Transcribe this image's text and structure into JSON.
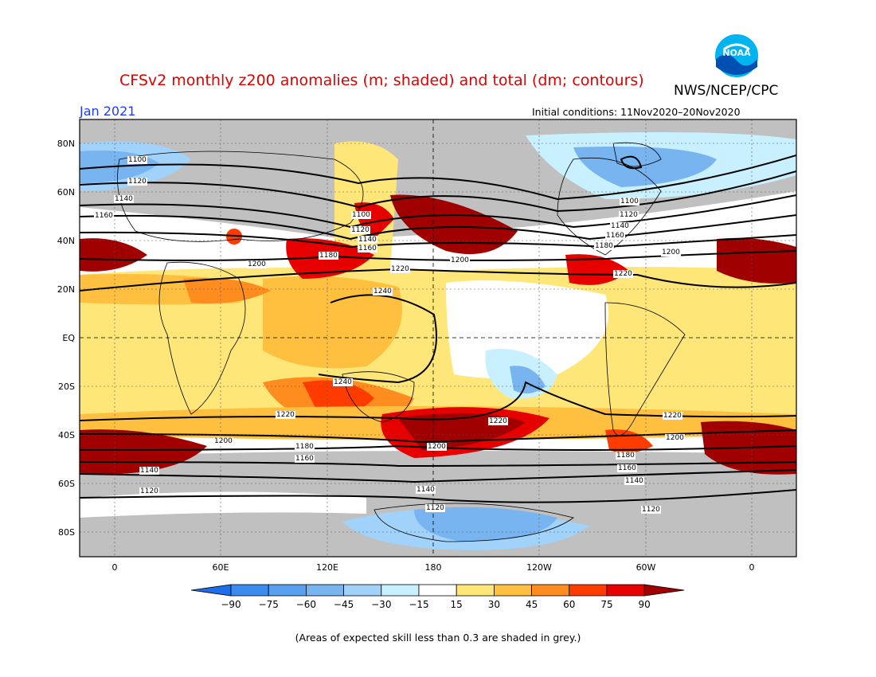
{
  "header": {
    "title": "CFSv2 monthly z200 anomalies (m; shaded) and total (dm; contours)",
    "agency": "NWS/NCEP/CPC",
    "month": "Jan 2021",
    "initial_conditions": "Initial conditions: 11Nov2020–20Nov2020",
    "logo_text": "NOAA"
  },
  "map": {
    "lat_ticks": [
      "80N",
      "60N",
      "40N",
      "20N",
      "EQ",
      "20S",
      "40S",
      "60S",
      "80S"
    ],
    "lon_ticks": [
      "0",
      "60E",
      "120E",
      "180",
      "120W",
      "60W",
      "0"
    ],
    "contour_labels": [
      "1100",
      "1120",
      "1140",
      "1160",
      "1180",
      "1200",
      "1220",
      "1240"
    ],
    "colors": {
      "grey_low_skill": "#c0c0c0",
      "ocean_white": "#ffffff",
      "coast": "#000000"
    }
  },
  "colorbar": {
    "labels": [
      "−90",
      "−75",
      "−60",
      "−45",
      "−30",
      "−15",
      "15",
      "30",
      "45",
      "60",
      "75",
      "90"
    ],
    "colors": [
      "#1e6eeb",
      "#3c8cf0",
      "#5aa0f0",
      "#78b4f0",
      "#a0d2fa",
      "#c8f0ff",
      "#ffffff",
      "#ffe678",
      "#ffc040",
      "#ff8c1e",
      "#ff3c00",
      "#e60000",
      "#a00000"
    ]
  },
  "note": "(Areas of expected skill less than 0.3 are shaded in grey.)"
}
